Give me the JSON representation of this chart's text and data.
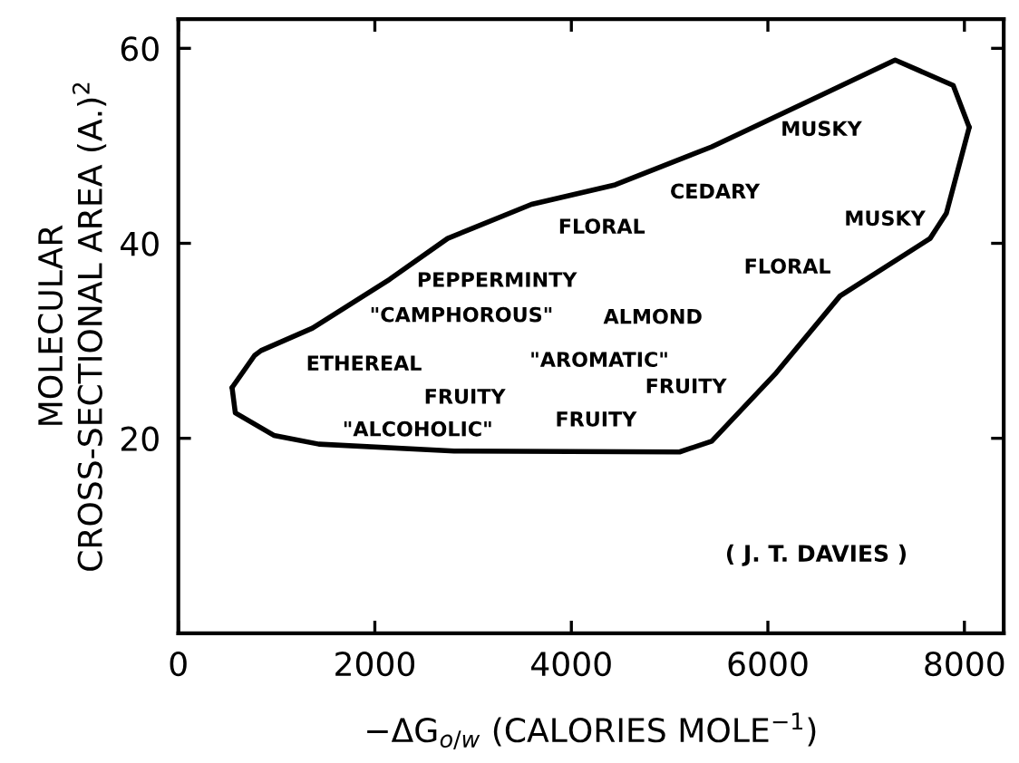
{
  "chart_data": {
    "type": "line",
    "xlabel": "−ΔG$_{o/w}$ (CALORIES MOLE$^{−1}$)",
    "ylabel": "MOLECULAR\nCROSS-SECTIONAL AREA (A.)$^{2}$",
    "xlim": [
      0,
      8400
    ],
    "xticks": [
      0,
      2000,
      4000,
      6000,
      8000
    ],
    "ylim": [
      0,
      63
    ],
    "yticks": [
      20,
      40,
      60
    ],
    "grid": false,
    "marker": "none",
    "line_style": "solid",
    "series": [
      {
        "color": "#000000",
        "x": [
          547,
          776,
          842,
          1365,
          2150,
          2741,
          3594,
          4446,
          5429,
          6543,
          7295,
          7886,
          8049
        ],
        "values": [
          25.2,
          28.5,
          29.0,
          31.3,
          36.3,
          40.5,
          44.0,
          46.0,
          49.9,
          55.2,
          58.8,
          56.2,
          51.9
        ]
      },
      {
        "color": "#000000",
        "x": [
          547,
          580,
          972,
          1431,
          2807,
          5101,
          5429,
          6084,
          6734,
          7651,
          7817,
          8049
        ],
        "values": [
          25.2,
          22.6,
          20.3,
          19.4,
          18.7,
          18.6,
          19.7,
          26.7,
          34.6,
          40.5,
          43.1,
          51.9
        ]
      }
    ],
    "annotations": [
      "MUSKY",
      "CEDARY",
      "MUSKY",
      "FLORAL",
      "FLORAL",
      "PEPPERMINTY",
      "\"CAMPHOROUS\"",
      "ALMOND",
      "ETHEREAL",
      "\"AROMATIC\"",
      "FRUITY",
      "FRUITY",
      "FRUITY",
      "\"ALCOHOLIC\"",
      "( J. T. DAVIES )"
    ]
  }
}
